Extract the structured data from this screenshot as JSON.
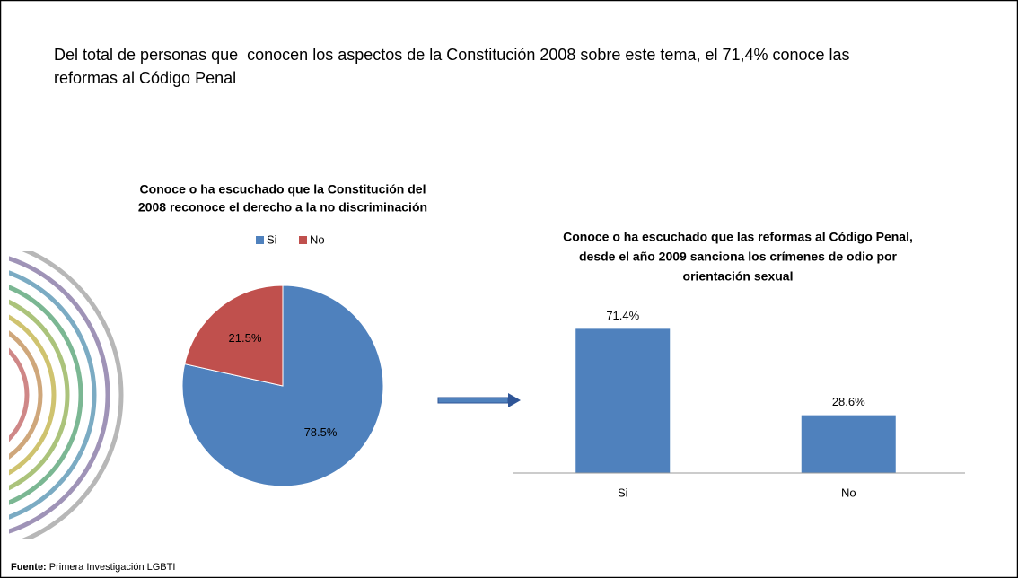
{
  "heading": [
    "Del total de personas que  conocen los aspectos de la Constitución 2008 sobre este tema, el 71,4% conoce las",
    "reformas al Código Penal"
  ],
  "source": {
    "label": "Fuente:",
    "text": "Primera Investigación LGBTI"
  },
  "chart_data": [
    {
      "type": "pie",
      "title": [
        "Conoce o ha escuchado que la Constitución del",
        "2008 reconoce el derecho a la no discriminación"
      ],
      "categories": [
        "Si",
        "No"
      ],
      "values": [
        78.5,
        21.5
      ],
      "value_labels": [
        "78.5%",
        "21.5%"
      ],
      "colors": [
        "#4f81bd",
        "#c0504d"
      ],
      "legend": "top"
    },
    {
      "type": "bar",
      "title": [
        "Conoce o ha escuchado que las reformas al Código Penal,",
        "desde el año 2009 sanciona los crímenes de odio por",
        "orientación sexual"
      ],
      "categories": [
        "Si",
        "No"
      ],
      "values": [
        71.4,
        28.6
      ],
      "value_labels": [
        "71.4%",
        "28.6%"
      ],
      "color": "#4f81bd"
    }
  ]
}
